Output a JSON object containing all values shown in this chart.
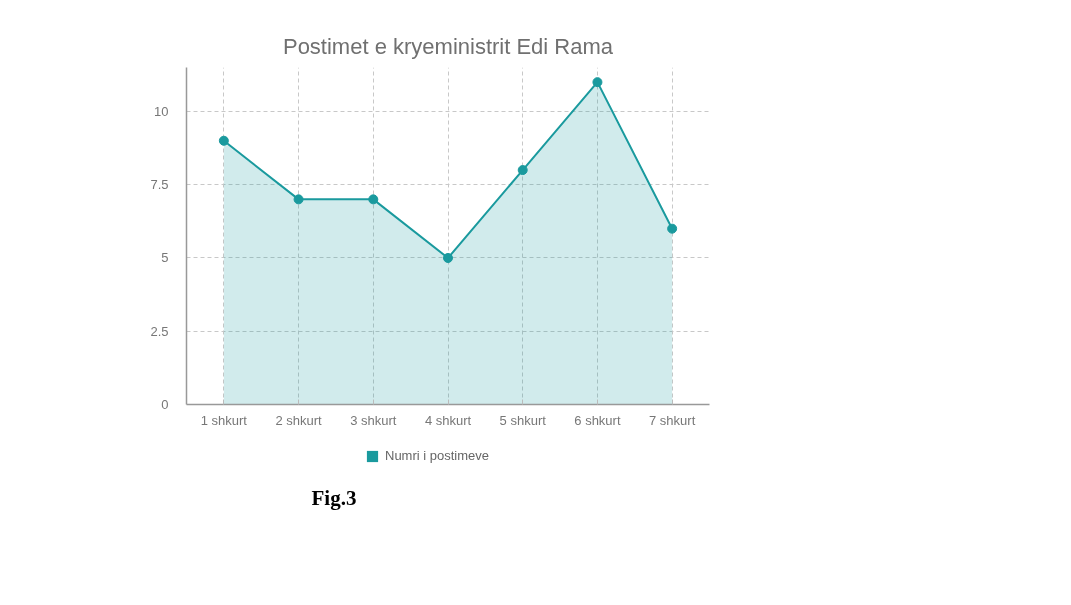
{
  "chart_data": {
    "type": "area",
    "title": "Postimet e kryeministrit Edi Rama",
    "categories": [
      "1 shkurt",
      "2 shkurt",
      "3 shkurt",
      "4 shkurt",
      "5 shkurt",
      "6 shkurt",
      "7 shkurt"
    ],
    "series": [
      {
        "name": "Numri i postimeve",
        "color": "#1a9a9e",
        "values": [
          9,
          7,
          7,
          5,
          8,
          11,
          6
        ]
      }
    ],
    "ylim": [
      0,
      11.5
    ],
    "yticks": [
      0,
      2.5,
      5,
      7.5,
      10
    ],
    "grid": true,
    "legend": "bottom",
    "marker": "circle",
    "annotations": [
      "Fig.3"
    ]
  }
}
